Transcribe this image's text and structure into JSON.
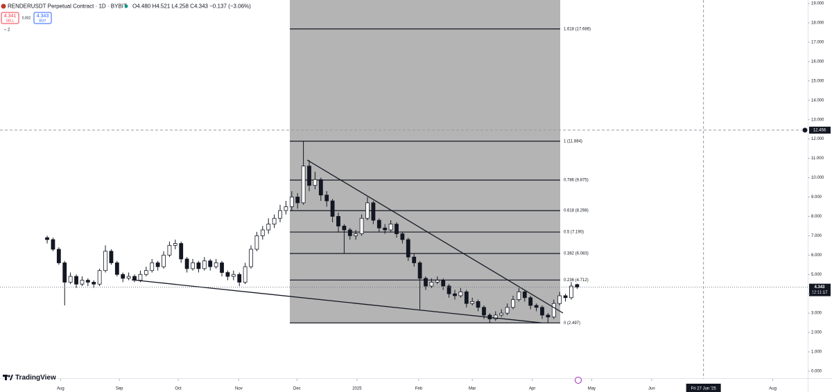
{
  "ui": {
    "symbol_line": "RENDERUSDT Perpetual Contract · 1D · BYBIT",
    "ohlc_line": "O4.480 H4.521 L4.258 C4.343 −0.137 (−3.06%)",
    "sell_price": "4.341",
    "sell_label": "SELL",
    "spread": "0.002",
    "buy_price": "4.343",
    "buy_label": "BUY",
    "indicators_count": "2",
    "logo": "TradingView"
  },
  "chart_data": {
    "type": "candlestick",
    "title": "RENDERUSDT Perpetual Contract · 1D · BYBIT",
    "up_color": "#ffffff",
    "down_color": "#131722",
    "wick_color": "#131722",
    "xlim": [
      -8.1,
      130.6
    ],
    "ylim": [
      0,
      19
    ],
    "xticks": [
      {
        "value": 2.3,
        "label": "Aug"
      },
      {
        "value": 12.4,
        "label": "Sep"
      },
      {
        "value": 22.5,
        "label": "Oct"
      },
      {
        "value": 32.9,
        "label": "Nov"
      },
      {
        "value": 42.9,
        "label": "Dec"
      },
      {
        "value": 53.2,
        "label": "2025"
      },
      {
        "value": 63.8,
        "label": "Feb"
      },
      {
        "value": 73,
        "label": "Mar"
      },
      {
        "value": 83.3,
        "label": "Apr"
      },
      {
        "value": 93.5,
        "label": "May"
      },
      {
        "value": 103.8,
        "label": "Jun"
      },
      {
        "value": 124.6,
        "label": "Aug"
      }
    ],
    "yticks": [
      {
        "value": 19,
        "label": "19.000"
      },
      {
        "value": 18,
        "label": "18.000"
      },
      {
        "value": 17,
        "label": "17.000"
      },
      {
        "value": 16,
        "label": "16.000"
      },
      {
        "value": 15,
        "label": "15.000"
      },
      {
        "value": 14,
        "label": "14.000"
      },
      {
        "value": 13,
        "label": "13.000"
      },
      {
        "value": 12,
        "label": "12.000"
      },
      {
        "value": 11,
        "label": "11.000"
      },
      {
        "value": 10,
        "label": "10.000"
      },
      {
        "value": 9,
        "label": "9.000"
      },
      {
        "value": 8,
        "label": "8.000"
      },
      {
        "value": 7,
        "label": "7.000"
      },
      {
        "value": 6,
        "label": "6.000"
      },
      {
        "value": 5,
        "label": "5.000"
      },
      {
        "value": 4,
        "label": "4.000"
      },
      {
        "value": 3,
        "label": "3.000"
      },
      {
        "value": 2,
        "label": "2.000"
      },
      {
        "value": 1,
        "label": "1.000"
      },
      {
        "value": 0,
        "label": "0.000"
      }
    ],
    "fib_levels": [
      {
        "value": 17.686,
        "label": "1.618 (17.686)"
      },
      {
        "value": 11.884,
        "label": "1 (11.884)"
      },
      {
        "value": 9.875,
        "label": "0.786 (9.875)"
      },
      {
        "value": 8.298,
        "label": "0.618 (8.298)"
      },
      {
        "value": 7.19,
        "label": "0.5 (7.190)"
      },
      {
        "value": 6.083,
        "label": "0.382 (6.083)"
      },
      {
        "value": 4.712,
        "label": "0.236 (4.712)"
      },
      {
        "value": 2.497,
        "label": "0 (2.497)"
      }
    ],
    "crosshair_price": 12.456,
    "crosshair_time": {
      "value": 112.7,
      "label": "Fri 27 Jun '25"
    },
    "last_price": 4.343,
    "countdown": "12:11:17",
    "candles": [
      [
        6.9,
        7.0,
        6.6,
        6.8
      ],
      [
        6.8,
        6.9,
        6.2,
        6.3
      ],
      [
        6.3,
        6.4,
        5.5,
        5.6
      ],
      [
        5.6,
        5.7,
        3.4,
        4.6
      ],
      [
        4.6,
        5.1,
        4.5,
        4.9
      ],
      [
        4.9,
        5.0,
        4.3,
        4.5
      ],
      [
        4.5,
        4.9,
        4.4,
        4.7
      ],
      [
        4.7,
        4.8,
        4.4,
        4.6
      ],
      [
        4.6,
        4.7,
        4.3,
        4.5
      ],
      [
        4.5,
        5.3,
        4.4,
        5.2
      ],
      [
        5.2,
        6.5,
        5.1,
        6.2
      ],
      [
        6.2,
        6.3,
        5.5,
        5.6
      ],
      [
        5.6,
        5.7,
        4.9,
        5.0
      ],
      [
        5.0,
        5.1,
        4.6,
        4.8
      ],
      [
        4.8,
        5.1,
        4.7,
        4.9
      ],
      [
        4.9,
        5.0,
        4.6,
        4.7
      ],
      [
        4.7,
        5.2,
        4.6,
        5.0
      ],
      [
        5.0,
        5.4,
        4.9,
        5.2
      ],
      [
        5.2,
        5.8,
        5.1,
        5.6
      ],
      [
        5.6,
        5.7,
        5.2,
        5.4
      ],
      [
        5.4,
        6.2,
        5.3,
        6.0
      ],
      [
        6.0,
        6.7,
        5.9,
        6.5
      ],
      [
        6.5,
        6.8,
        6.3,
        6.6
      ],
      [
        6.6,
        6.7,
        5.6,
        5.8
      ],
      [
        5.8,
        5.9,
        5.1,
        5.3
      ],
      [
        5.3,
        5.8,
        5.2,
        5.6
      ],
      [
        5.6,
        5.7,
        5.1,
        5.3
      ],
      [
        5.3,
        5.9,
        5.2,
        5.7
      ],
      [
        5.7,
        5.8,
        5.2,
        5.4
      ],
      [
        5.4,
        5.8,
        5.3,
        5.6
      ],
      [
        5.6,
        5.7,
        4.9,
        5.1
      ],
      [
        5.1,
        5.2,
        4.7,
        4.9
      ],
      [
        4.9,
        5.2,
        4.7,
        5.0
      ],
      [
        5.0,
        5.1,
        4.4,
        4.6
      ],
      [
        4.6,
        5.6,
        4.5,
        5.4
      ],
      [
        5.4,
        6.5,
        5.3,
        6.3
      ],
      [
        6.3,
        7.2,
        6.2,
        7.0
      ],
      [
        7.0,
        7.5,
        6.8,
        7.3
      ],
      [
        7.3,
        7.9,
        7.1,
        7.6
      ],
      [
        7.6,
        8.1,
        7.4,
        7.9
      ],
      [
        7.9,
        8.6,
        7.7,
        8.3
      ],
      [
        8.3,
        8.8,
        8.1,
        8.5
      ],
      [
        8.5,
        9.3,
        8.3,
        9.0
      ],
      [
        9.0,
        9.2,
        8.4,
        8.7
      ],
      [
        8.7,
        11.9,
        8.6,
        10.6
      ],
      [
        10.6,
        10.9,
        9.3,
        9.6
      ],
      [
        9.6,
        10.3,
        9.4,
        9.9
      ],
      [
        9.9,
        10.0,
        8.8,
        9.1
      ],
      [
        9.1,
        9.3,
        8.5,
        8.8
      ],
      [
        8.8,
        8.9,
        7.7,
        8.0
      ],
      [
        8.0,
        8.2,
        7.2,
        7.5
      ],
      [
        7.5,
        7.6,
        6.1,
        7.3
      ],
      [
        7.3,
        7.4,
        6.8,
        7.0
      ],
      [
        7.0,
        7.3,
        6.8,
        7.1
      ],
      [
        7.1,
        8.1,
        7.0,
        7.9
      ],
      [
        7.9,
        9.0,
        7.8,
        8.7
      ],
      [
        8.7,
        8.8,
        7.6,
        7.8
      ],
      [
        7.8,
        7.9,
        7.2,
        7.4
      ],
      [
        7.4,
        7.6,
        7.1,
        7.3
      ],
      [
        7.3,
        7.8,
        7.2,
        7.6
      ],
      [
        7.6,
        7.7,
        6.9,
        7.1
      ],
      [
        7.1,
        7.2,
        6.6,
        6.8
      ],
      [
        6.8,
        6.9,
        5.7,
        5.9
      ],
      [
        5.9,
        6.1,
        5.4,
        5.6
      ],
      [
        5.6,
        5.7,
        3.2,
        4.8
      ],
      [
        4.8,
        4.9,
        4.2,
        4.4
      ],
      [
        4.4,
        4.8,
        4.3,
        4.6
      ],
      [
        4.6,
        4.9,
        4.5,
        4.7
      ],
      [
        4.7,
        4.8,
        4.2,
        4.4
      ],
      [
        4.4,
        4.5,
        3.8,
        4.0
      ],
      [
        4.0,
        4.2,
        3.7,
        3.9
      ],
      [
        3.9,
        4.3,
        3.8,
        4.1
      ],
      [
        4.1,
        4.2,
        3.3,
        3.5
      ],
      [
        3.5,
        3.8,
        3.4,
        3.6
      ],
      [
        3.6,
        3.7,
        3.1,
        3.3
      ],
      [
        3.3,
        3.4,
        2.7,
        2.9
      ],
      [
        2.9,
        3.0,
        2.5,
        2.7
      ],
      [
        2.7,
        3.1,
        2.6,
        2.9
      ],
      [
        2.9,
        3.2,
        2.8,
        3.0
      ],
      [
        3.0,
        3.5,
        2.9,
        3.3
      ],
      [
        3.3,
        3.9,
        3.2,
        3.7
      ],
      [
        3.7,
        4.3,
        3.6,
        4.1
      ],
      [
        4.1,
        4.2,
        3.6,
        3.8
      ],
      [
        3.8,
        3.9,
        3.2,
        3.4
      ],
      [
        3.4,
        3.5,
        3.1,
        3.3
      ],
      [
        3.3,
        3.4,
        2.7,
        2.9
      ],
      [
        2.9,
        3.0,
        2.5,
        2.8
      ],
      [
        2.8,
        3.7,
        2.7,
        3.5
      ],
      [
        3.5,
        4.1,
        3.4,
        3.9
      ],
      [
        3.9,
        4.0,
        3.6,
        3.8
      ],
      [
        3.8,
        4.6,
        3.7,
        4.4
      ],
      [
        4.48,
        4.521,
        4.258,
        4.343
      ]
    ]
  }
}
